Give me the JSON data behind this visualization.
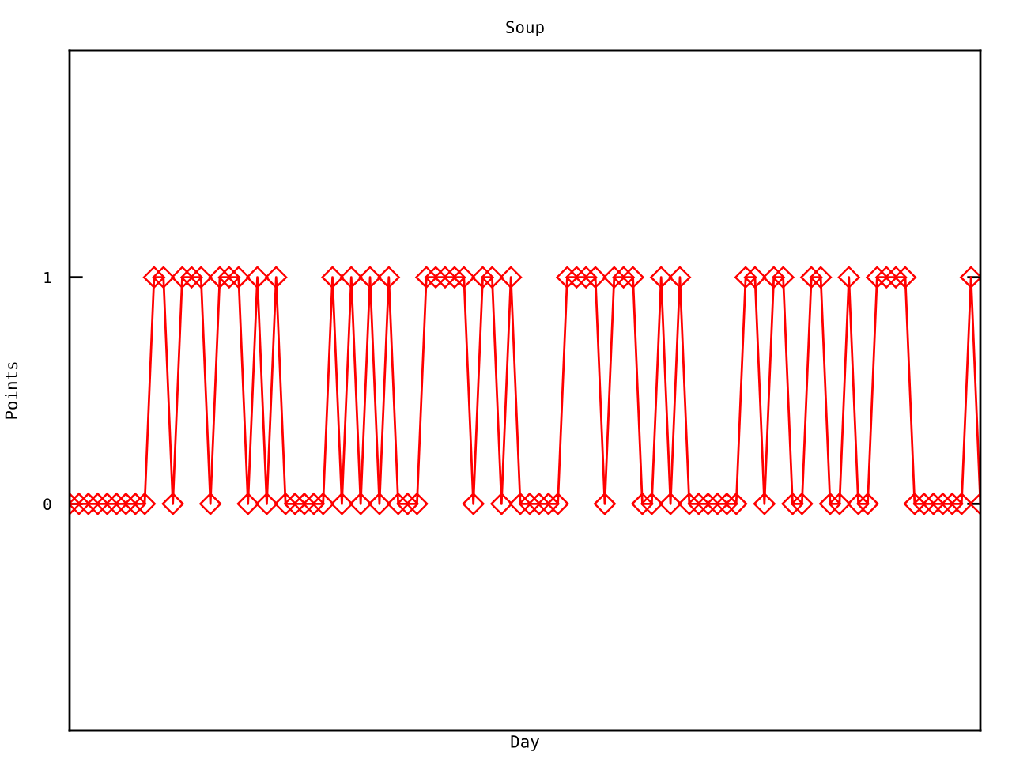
{
  "chart_data": {
    "type": "line",
    "title": "Soup",
    "xlabel": "Day",
    "ylabel": "Points",
    "categories": [
      null,
      null,
      null,
      null,
      null,
      null,
      null,
      null,
      null,
      null,
      null,
      null,
      null,
      null,
      null,
      null,
      null,
      null,
      null,
      null,
      null,
      null,
      null,
      null,
      null,
      null,
      null,
      null,
      null,
      null,
      null,
      null,
      null,
      null,
      null,
      null,
      null,
      null,
      null,
      null,
      null,
      null,
      null,
      null,
      null,
      null,
      null,
      null,
      null,
      null,
      null,
      null,
      null,
      null,
      null,
      null,
      null,
      null,
      null,
      null,
      null,
      null,
      null,
      null,
      null,
      null,
      null,
      null,
      null,
      null,
      null,
      null,
      null,
      null,
      null,
      null,
      null,
      null,
      null,
      null,
      null,
      null,
      null,
      null,
      null,
      null,
      null,
      null,
      null,
      null,
      null,
      null,
      null,
      null,
      null,
      null,
      null,
      null
    ],
    "series": [
      {
        "color": "#ff0000",
        "values": [
          0,
          0,
          0,
          0,
          0,
          0,
          0,
          0,
          0,
          1,
          1,
          0,
          1,
          1,
          1,
          0,
          1,
          1,
          1,
          0,
          1,
          0,
          1,
          0,
          0,
          0,
          0,
          0,
          1,
          0,
          1,
          0,
          1,
          0,
          1,
          0,
          0,
          0,
          1,
          1,
          1,
          1,
          1,
          0,
          1,
          1,
          0,
          1,
          0,
          0,
          0,
          0,
          0,
          1,
          1,
          1,
          1,
          0,
          1,
          1,
          1,
          0,
          0,
          1,
          0,
          1,
          0,
          0,
          0,
          0,
          0,
          0,
          1,
          1,
          0,
          1,
          1,
          0,
          0,
          1,
          1,
          0,
          0,
          1,
          0,
          0,
          1,
          1,
          1,
          1,
          0,
          0,
          0,
          0,
          0,
          0,
          1,
          0
        ]
      }
    ],
    "ylim": [
      -1,
      2
    ],
    "yticks": [
      0,
      1
    ],
    "tick_labels": "y",
    "marker": "diamond",
    "line_style": "solid"
  }
}
